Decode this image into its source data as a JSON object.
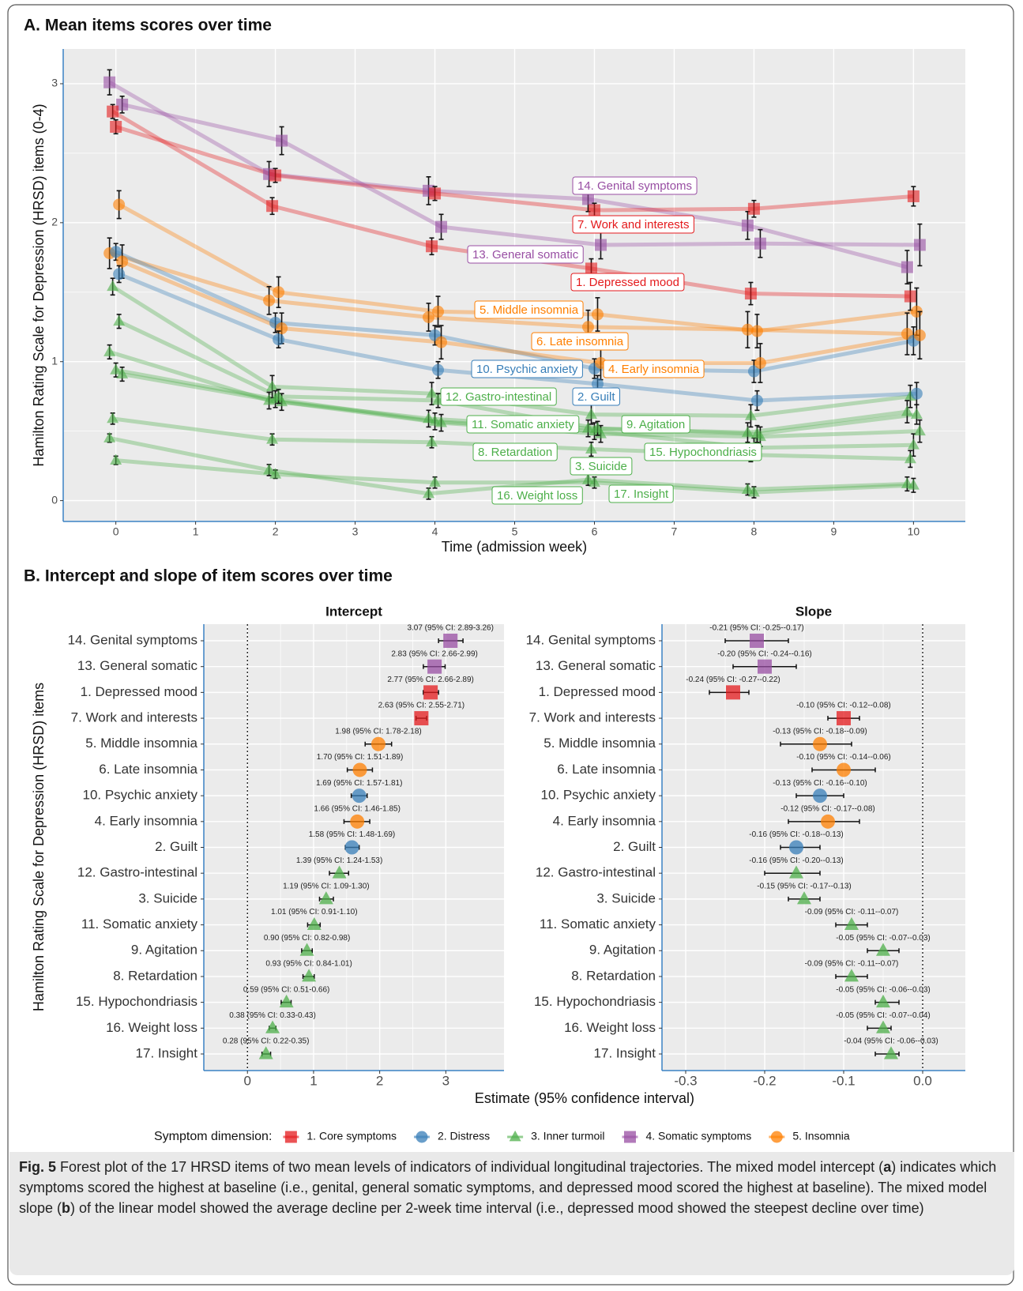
{
  "chart_data": [
    {
      "type": "line",
      "title": "A. Mean items scores over time",
      "x_label": "Time (admission week)",
      "y_label": "Hamilton Rating Scale for Depression (HRSD) items (0-4)",
      "x": [
        0,
        2,
        4,
        6,
        8,
        10
      ],
      "xlim": [
        -0.66,
        10.65
      ],
      "xticks": [
        0,
        1,
        2,
        3,
        4,
        5,
        6,
        7,
        8,
        9,
        10
      ],
      "ylim": [
        -0.15,
        3.25
      ],
      "yticks": [
        0,
        1,
        2,
        3
      ],
      "grid": true,
      "series": [
        {
          "name": "14. Genital symptoms",
          "color": "#984ea3",
          "shape": "square",
          "values": [
            3.01,
            2.35,
            2.23,
            2.17,
            1.98,
            1.68
          ],
          "errors": [
            0.09,
            0.09,
            0.1,
            0.09,
            0.1,
            0.12
          ]
        },
        {
          "name": "7. Work and interests",
          "color": "#e41a1c",
          "shape": "square",
          "values": [
            2.69,
            2.34,
            2.21,
            2.09,
            2.1,
            2.19
          ],
          "errors": [
            0.05,
            0.05,
            0.05,
            0.05,
            0.06,
            0.07
          ]
        },
        {
          "name": "13. General somatic",
          "color": "#984ea3",
          "shape": "square",
          "values": [
            2.85,
            2.59,
            1.97,
            1.84,
            1.85,
            1.84
          ],
          "errors": [
            0.06,
            0.1,
            0.09,
            0.1,
            0.1,
            0.15
          ]
        },
        {
          "name": "1. Depressed mood",
          "color": "#e41a1c",
          "shape": "square",
          "values": [
            2.8,
            2.12,
            1.83,
            1.67,
            1.49,
            1.47
          ],
          "errors": [
            0.05,
            0.06,
            0.06,
            0.07,
            0.08,
            0.1
          ]
        },
        {
          "name": "5. Middle insomnia",
          "color": "#ff7f00",
          "shape": "circle",
          "values": [
            2.13,
            1.5,
            1.36,
            1.34,
            1.22,
            1.36
          ],
          "errors": [
            0.1,
            0.11,
            0.11,
            0.12,
            0.12,
            0.17
          ]
        },
        {
          "name": "6. Late insomnia",
          "color": "#ff7f00",
          "shape": "circle",
          "values": [
            1.78,
            1.44,
            1.32,
            1.25,
            1.23,
            1.2
          ],
          "errors": [
            0.11,
            0.1,
            0.1,
            0.12,
            0.13,
            0.15
          ]
        },
        {
          "name": "10. Psychic anxiety",
          "color": "#377eb8",
          "shape": "circle",
          "values": [
            1.79,
            1.28,
            1.19,
            0.95,
            0.93,
            1.15
          ],
          "errors": [
            0.06,
            0.07,
            0.07,
            0.07,
            0.08,
            0.1
          ]
        },
        {
          "name": "4. Early insomnia",
          "color": "#ff7f00",
          "shape": "circle",
          "values": [
            1.72,
            1.24,
            1.14,
            0.99,
            0.99,
            1.19
          ],
          "errors": [
            0.12,
            0.11,
            0.12,
            0.12,
            0.14,
            0.17
          ]
        },
        {
          "name": "12. Gastro-intestinal",
          "color": "#4daf4a",
          "shape": "triangle",
          "values": [
            1.54,
            0.82,
            0.77,
            0.62,
            0.61,
            0.75
          ],
          "errors": [
            0.06,
            0.08,
            0.08,
            0.07,
            0.08,
            0.08
          ]
        },
        {
          "name": "2. Guilt",
          "color": "#377eb8",
          "shape": "circle",
          "values": [
            1.63,
            1.16,
            0.94,
            0.84,
            0.72,
            0.77
          ],
          "errors": [
            0.06,
            0.06,
            0.06,
            0.06,
            0.07,
            0.08
          ]
        },
        {
          "name": "11. Somatic anxiety",
          "color": "#4daf4a",
          "shape": "triangle",
          "values": [
            1.07,
            0.72,
            0.59,
            0.52,
            0.49,
            0.64
          ],
          "errors": [
            0.05,
            0.06,
            0.06,
            0.06,
            0.07,
            0.08
          ]
        },
        {
          "name": "9. Agitation",
          "color": "#4daf4a",
          "shape": "triangle",
          "values": [
            0.94,
            0.73,
            0.57,
            0.5,
            0.38,
            0.4
          ],
          "errors": [
            0.05,
            0.06,
            0.06,
            0.06,
            0.07,
            0.08
          ]
        },
        {
          "name": "8. Retardation",
          "color": "#4daf4a",
          "shape": "triangle",
          "values": [
            0.91,
            0.71,
            0.56,
            0.48,
            0.46,
            0.5
          ],
          "errors": [
            0.05,
            0.06,
            0.06,
            0.06,
            0.07,
            0.08
          ]
        },
        {
          "name": "15. Hypochondriasis",
          "color": "#4daf4a",
          "shape": "triangle",
          "values": [
            0.59,
            0.44,
            0.42,
            0.37,
            0.33,
            0.3
          ],
          "errors": [
            0.04,
            0.04,
            0.04,
            0.05,
            0.05,
            0.06
          ]
        },
        {
          "name": "3. Suicide",
          "color": "#4daf4a",
          "shape": "triangle",
          "values": [
            1.29,
            0.75,
            0.72,
            0.52,
            0.48,
            0.62
          ],
          "errors": [
            0.05,
            0.05,
            0.05,
            0.05,
            0.06,
            0.07
          ]
        },
        {
          "name": "16. Weight loss",
          "color": "#4daf4a",
          "shape": "triangle",
          "values": [
            0.45,
            0.22,
            0.05,
            0.15,
            0.08,
            0.12
          ],
          "errors": [
            0.03,
            0.04,
            0.04,
            0.04,
            0.04,
            0.05
          ]
        },
        {
          "name": "17. Insight",
          "color": "#4daf4a",
          "shape": "triangle",
          "values": [
            0.29,
            0.19,
            0.13,
            0.13,
            0.06,
            0.11
          ],
          "errors": [
            0.03,
            0.03,
            0.04,
            0.04,
            0.04,
            0.05
          ]
        }
      ]
    },
    {
      "type": "forest",
      "title": "Intercept",
      "categories": [
        "14. Genital symptoms",
        "13. General somatic",
        "1. Depressed mood",
        "7. Work and interests",
        "5. Middle insomnia",
        "6. Late insomnia",
        "10. Psychic anxiety",
        "4. Early insomnia",
        "2. Guilt",
        "12. Gastro-intestinal",
        "3. Suicide",
        "11. Somatic anxiety",
        "9. Agitation",
        "8. Retardation",
        "15. Hypochondriasis",
        "16. Weight loss",
        "17. Insight"
      ],
      "values": [
        3.07,
        2.83,
        2.77,
        2.63,
        1.98,
        1.7,
        1.69,
        1.66,
        1.58,
        1.39,
        1.19,
        1.01,
        0.9,
        0.93,
        0.59,
        0.38,
        0.28
      ],
      "lower": [
        2.89,
        2.66,
        2.66,
        2.55,
        1.78,
        1.51,
        1.57,
        1.46,
        1.48,
        1.24,
        1.09,
        0.91,
        0.82,
        0.84,
        0.51,
        0.33,
        0.22
      ],
      "upper": [
        3.26,
        2.99,
        2.89,
        2.71,
        2.18,
        1.89,
        1.81,
        1.85,
        1.69,
        1.53,
        1.3,
        1.1,
        0.98,
        1.01,
        0.66,
        0.43,
        0.35
      ],
      "value_labels": [
        "3.07 (95% CI: 2.89-3.26)",
        "2.83 (95% CI: 2.66-2.99)",
        "2.77 (95% CI: 2.66-2.89)",
        "2.63 (95% CI: 2.55-2.71)",
        "1.98 (95% CI: 1.78-2.18)",
        "1.70 (95% CI: 1.51-1.89)",
        "1.69 (95% CI: 1.57-1.81)",
        "1.66 (95% CI: 1.46-1.85)",
        "1.58 (95% CI: 1.48-1.69)",
        "1.39 (95% CI: 1.24-1.53)",
        "1.19 (95% CI: 1.09-1.30)",
        "1.01 (95% CI: 0.91-1.10)",
        "0.90 (95% CI: 0.82-0.98)",
        "0.93 (95% CI: 0.84-1.01)",
        "0.59 (95% CI: 0.51-0.66)",
        "0.38 (95% CI: 0.33-0.43)",
        "0.28 (95% CI: 0.22-0.35)"
      ],
      "colors": [
        "#984ea3",
        "#984ea3",
        "#e41a1c",
        "#e41a1c",
        "#ff7f00",
        "#ff7f00",
        "#377eb8",
        "#ff7f00",
        "#377eb8",
        "#4daf4a",
        "#4daf4a",
        "#4daf4a",
        "#4daf4a",
        "#4daf4a",
        "#4daf4a",
        "#4daf4a",
        "#4daf4a"
      ],
      "shapes": [
        "square",
        "square",
        "square",
        "square",
        "circle",
        "circle",
        "circle",
        "circle",
        "circle",
        "triangle",
        "triangle",
        "triangle",
        "triangle",
        "triangle",
        "triangle",
        "triangle",
        "triangle"
      ],
      "xlim": [
        -0.66,
        3.88
      ],
      "xticks": [
        0,
        1,
        2,
        3
      ],
      "reference_line": 0,
      "grid": true
    },
    {
      "type": "forest",
      "title": "Slope",
      "categories": [
        "14. Genital symptoms",
        "13. General somatic",
        "1. Depressed mood",
        "7. Work and interests",
        "5. Middle insomnia",
        "6. Late insomnia",
        "10. Psychic anxiety",
        "4. Early insomnia",
        "2. Guilt",
        "12. Gastro-intestinal",
        "3. Suicide",
        "11. Somatic anxiety",
        "9. Agitation",
        "8. Retardation",
        "15. Hypochondriasis",
        "16. Weight loss",
        "17. Insight"
      ],
      "values": [
        -0.21,
        -0.2,
        -0.24,
        -0.1,
        -0.13,
        -0.1,
        -0.13,
        -0.12,
        -0.16,
        -0.16,
        -0.15,
        -0.09,
        -0.05,
        -0.09,
        -0.05,
        -0.05,
        -0.04
      ],
      "lower": [
        -0.25,
        -0.24,
        -0.27,
        -0.12,
        -0.18,
        -0.14,
        -0.16,
        -0.17,
        -0.18,
        -0.2,
        -0.17,
        -0.11,
        -0.07,
        -0.11,
        -0.06,
        -0.07,
        -0.06
      ],
      "upper": [
        -0.17,
        -0.16,
        -0.22,
        -0.08,
        -0.09,
        -0.06,
        -0.1,
        -0.08,
        -0.13,
        -0.13,
        -0.13,
        -0.07,
        -0.03,
        -0.07,
        -0.03,
        -0.04,
        -0.03
      ],
      "value_labels": [
        "-0.21 (95% CI: -0.25--0.17)",
        "-0.20 (95% CI: -0.24--0.16)",
        "-0.24 (95% CI: -0.27--0.22)",
        "-0.10 (95% CI: -0.12--0.08)",
        "-0.13 (95% CI: -0.18--0.09)",
        "-0.10 (95% CI: -0.14--0.06)",
        "-0.13 (95% CI: -0.16--0.10)",
        "-0.12 (95% CI: -0.17--0.08)",
        "-0.16 (95% CI: -0.18--0.13)",
        "-0.16 (95% CI: -0.20--0.13)",
        "-0.15 (95% CI: -0.17--0.13)",
        "-0.09 (95% CI: -0.11--0.07)",
        "-0.05 (95% CI: -0.07--0.03)",
        "-0.09 (95% CI: -0.11--0.07)",
        "-0.05 (95% CI: -0.06--0.03)",
        "-0.05 (95% CI: -0.07--0.04)",
        "-0.04 (95% CI: -0.06--0.03)"
      ],
      "colors": [
        "#984ea3",
        "#984ea3",
        "#e41a1c",
        "#e41a1c",
        "#ff7f00",
        "#ff7f00",
        "#377eb8",
        "#ff7f00",
        "#377eb8",
        "#4daf4a",
        "#4daf4a",
        "#4daf4a",
        "#4daf4a",
        "#4daf4a",
        "#4daf4a",
        "#4daf4a",
        "#4daf4a"
      ],
      "shapes": [
        "square",
        "square",
        "square",
        "square",
        "circle",
        "circle",
        "circle",
        "circle",
        "circle",
        "triangle",
        "triangle",
        "triangle",
        "triangle",
        "triangle",
        "triangle",
        "triangle",
        "triangle"
      ],
      "xlim": [
        -0.33,
        0.054
      ],
      "xticks": [
        -0.3,
        -0.2,
        -0.1,
        {
          "value": 0,
          "label": "0.0"
        }
      ],
      "reference_line": 0,
      "grid": true
    }
  ],
  "panel_b": {
    "title": "B. Intercept and slope of item scores over time",
    "x_label": "Estimate (95% confidence interval)",
    "y_label": "Hamilton Rating Scale for Depression (HRSD) items"
  },
  "legend": {
    "title": "Symptom dimension:",
    "items": [
      {
        "name": "1. Core symptoms",
        "color": "#e41a1c",
        "shape": "square"
      },
      {
        "name": "2. Distress",
        "color": "#377eb8",
        "shape": "circle"
      },
      {
        "name": "3. Inner turmoil",
        "color": "#4daf4a",
        "shape": "triangle"
      },
      {
        "name": "4. Somatic symptoms",
        "color": "#984ea3",
        "shape": "square"
      },
      {
        "name": "5. Insomnia",
        "color": "#ff7f00",
        "shape": "circle"
      }
    ]
  },
  "caption": {
    "label": "Fig. 5",
    "parts": [
      " Forest plot of the 17 HRSD items of two mean levels of indicators of individual longitudinal trajectories. The mixed model intercept (",
      "a",
      ") indicates which symptoms scored the highest at baseline (i.e., genital, general somatic symptoms, and depressed mood scored the highest at baseline). The mixed model slope (",
      "b",
      ") of the linear model showed the average decline per 2-week time interval (i.e., depressed mood showed the steepest decline over time)"
    ]
  }
}
